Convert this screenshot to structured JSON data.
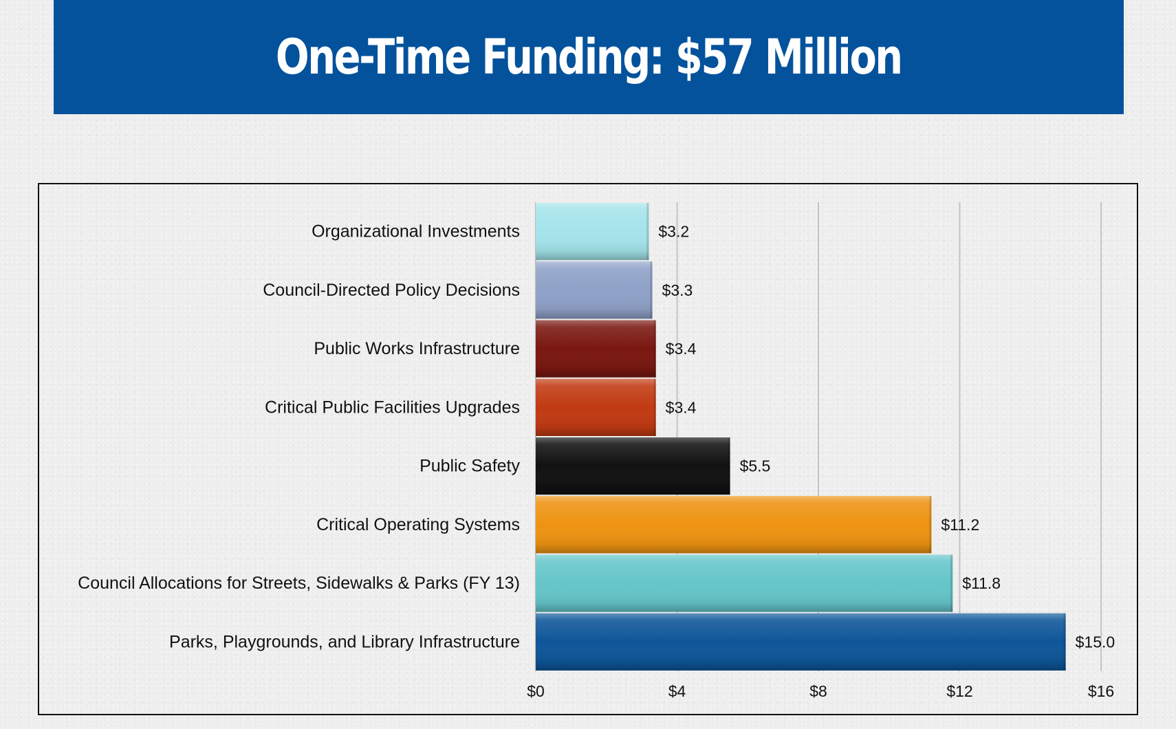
{
  "header": {
    "title": "One-Time Funding:  $57 Million"
  },
  "chart_data": {
    "type": "bar",
    "orientation": "horizontal",
    "title": "One-Time Funding:  $57 Million",
    "categories": [
      "Organizational Investments",
      "Council-Directed Policy Decisions",
      "Public Works Infrastructure",
      "Critical Public Facilities Upgrades",
      "Public Safety",
      "Critical Operating Systems",
      "Council Allocations for Streets, Sidewalks & Parks (FY 13)",
      "Parks, Playgrounds, and Library Infrastructure"
    ],
    "values": [
      3.2,
      3.3,
      3.4,
      3.4,
      5.5,
      11.2,
      11.8,
      15.0
    ],
    "value_labels": [
      "$3.2",
      "$3.3",
      "$3.4",
      "$3.4",
      "$5.5",
      "$11.2",
      "$11.8",
      "$15.0"
    ],
    "colors": [
      "#a3e4ea",
      "#8fa1c8",
      "#7a1710",
      "#c13a12",
      "#111111",
      "#ee9312",
      "#65c6c9",
      "#0e5699"
    ],
    "xlim": [
      0,
      16
    ],
    "xticks": [
      0,
      4,
      8,
      12,
      16
    ],
    "xtick_labels": [
      "$0",
      "$4",
      "$8",
      "$12",
      "$16"
    ],
    "xlabel": "",
    "ylabel": "",
    "grid": "vertical",
    "legend": "none"
  }
}
